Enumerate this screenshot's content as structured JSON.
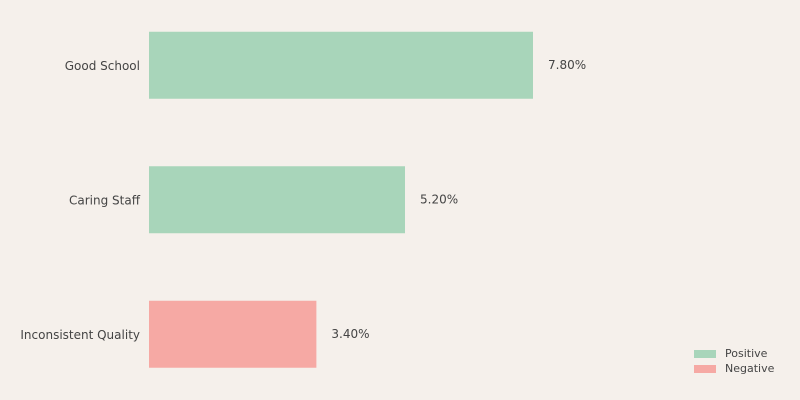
{
  "chart_data": {
    "type": "bar",
    "orientation": "horizontal",
    "categories": [
      "Good School",
      "Caring Staff",
      "Inconsistent Quality"
    ],
    "series": [
      {
        "name": "Positive",
        "color": "#a8d5ba",
        "values": [
          7.8,
          5.2,
          null
        ],
        "value_labels": [
          "7.80%",
          "5.20%",
          null
        ]
      },
      {
        "name": "Negative",
        "color": "#f6a9a4",
        "values": [
          null,
          null,
          3.4
        ],
        "value_labels": [
          null,
          null,
          "3.40%"
        ]
      }
    ],
    "legend": "lower right"
  }
}
